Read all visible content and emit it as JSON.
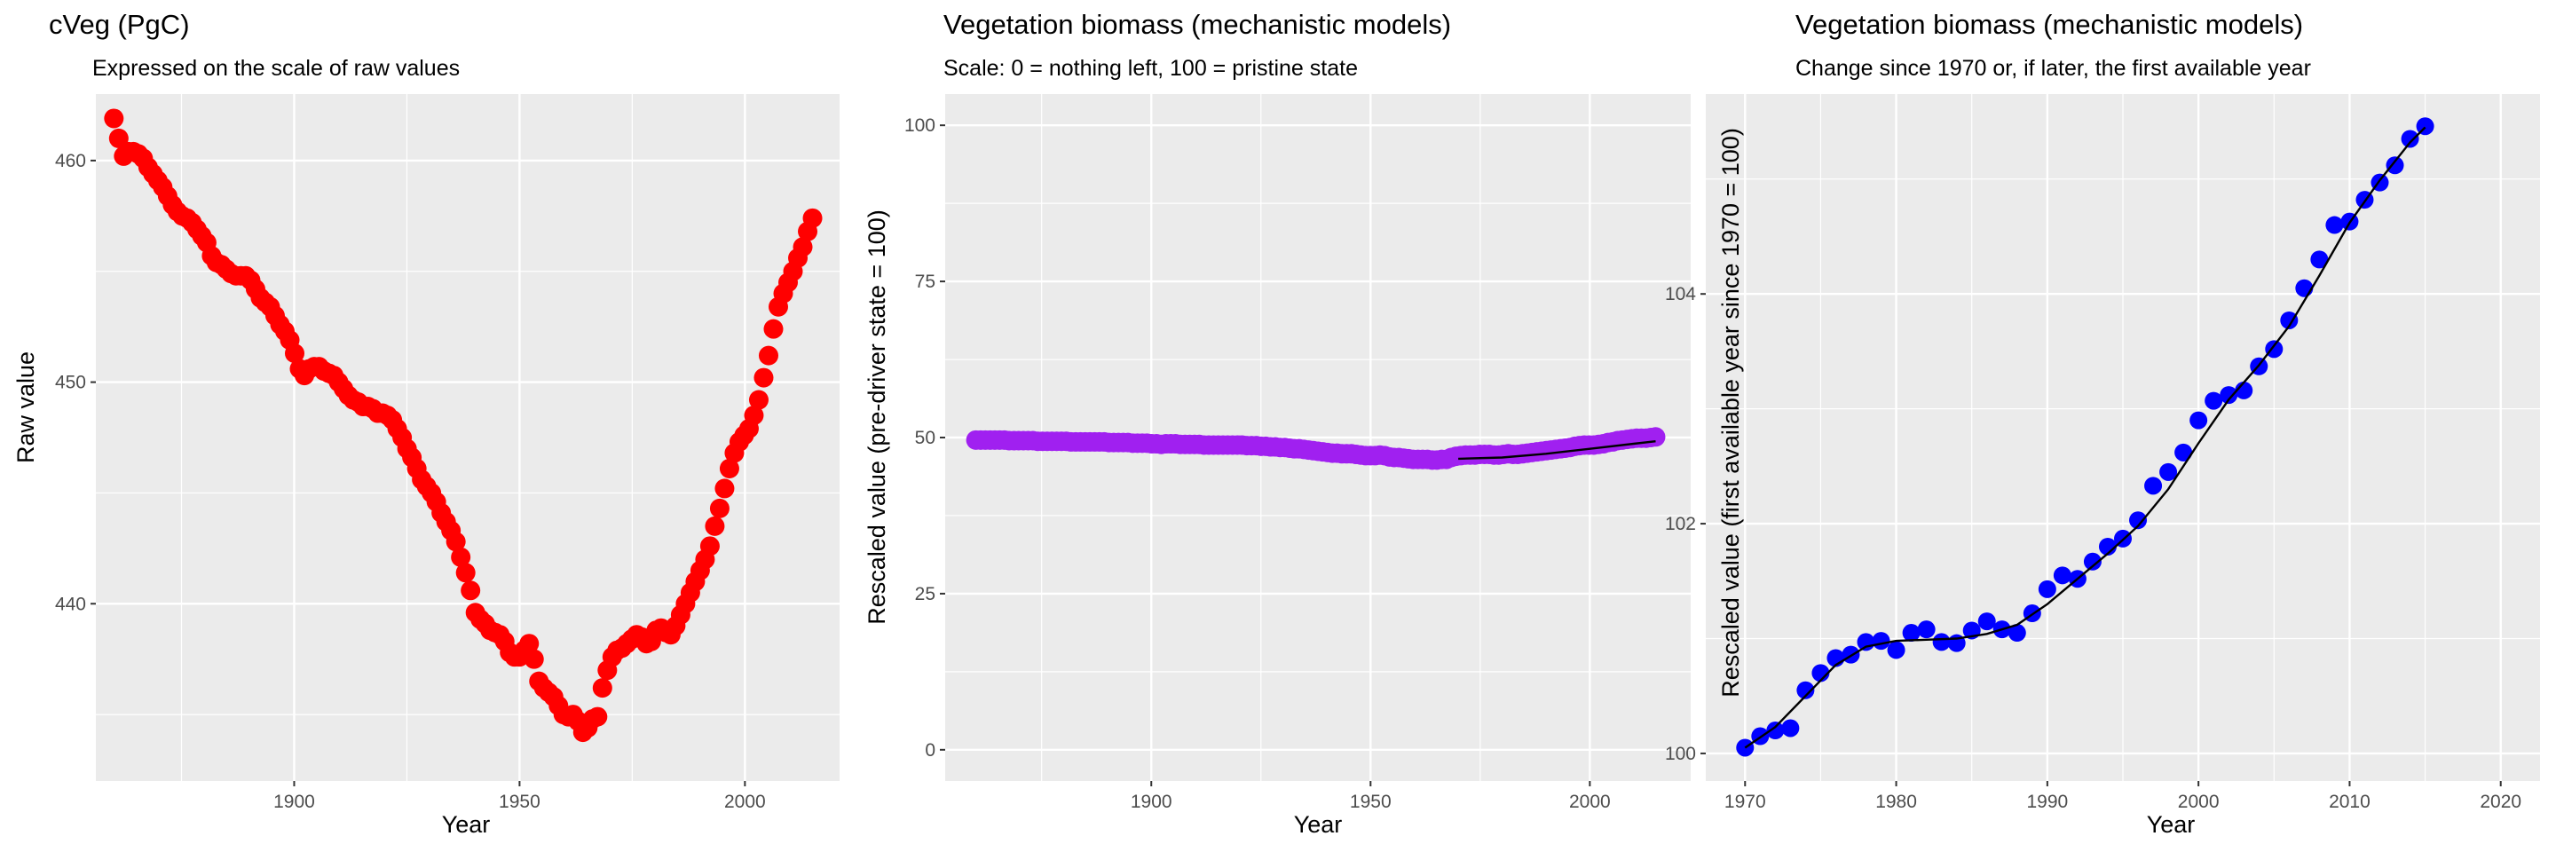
{
  "chart_data": [
    {
      "type": "scatter",
      "title": "cVeg (PgC)",
      "subtitle": "Expressed on the scale of raw values",
      "xlabel": "Year",
      "ylabel": "Raw value",
      "xlim": [
        1856,
        2021
      ],
      "ylim": [
        432,
        463
      ],
      "x_ticks": [
        1900,
        1950,
        2000
      ],
      "y_ticks": [
        440,
        450,
        460
      ],
      "grid": true,
      "point_color": "#ff0000",
      "x_range": [
        1860,
        2015
      ],
      "values": [
        461.9,
        461.0,
        460.2,
        460.4,
        460.4,
        460.3,
        460.1,
        459.7,
        459.4,
        459.1,
        458.8,
        458.4,
        458.0,
        457.7,
        457.5,
        457.4,
        457.2,
        456.9,
        456.6,
        456.3,
        455.7,
        455.4,
        455.3,
        455.1,
        454.9,
        454.8,
        454.8,
        454.8,
        454.6,
        454.2,
        453.8,
        453.6,
        453.4,
        453.0,
        452.6,
        452.3,
        451.9,
        451.3,
        450.6,
        450.3,
        450.6,
        450.7,
        450.7,
        450.5,
        450.4,
        450.3,
        450.0,
        449.7,
        449.4,
        449.2,
        449.1,
        448.9,
        448.9,
        448.8,
        448.6,
        448.6,
        448.5,
        448.3,
        447.9,
        447.5,
        447.0,
        446.6,
        446.1,
        445.6,
        445.3,
        445.0,
        444.6,
        444.1,
        443.7,
        443.3,
        442.8,
        442.1,
        441.4,
        440.6,
        439.6,
        439.3,
        439.1,
        438.8,
        438.7,
        438.6,
        438.3,
        437.8,
        437.6,
        437.6,
        437.9,
        438.2,
        437.5,
        436.5,
        436.2,
        436.0,
        435.8,
        435.4,
        435.0,
        434.9,
        435.0,
        434.7,
        434.2,
        434.4,
        434.8,
        434.9,
        436.2,
        437.0,
        437.6,
        437.9,
        438.0,
        438.2,
        438.4,
        438.6,
        438.5,
        438.2,
        438.3,
        438.8,
        438.9,
        438.7,
        438.6,
        439.0,
        439.5,
        440.0,
        440.5,
        441.0,
        441.5,
        442.0,
        442.6,
        443.5,
        444.3,
        445.2,
        446.1,
        446.8,
        447.3,
        447.6,
        447.9,
        448.5,
        449.2,
        450.2,
        451.2,
        452.4,
        453.4,
        454.0,
        454.5,
        455.0,
        455.6,
        456.1,
        456.8,
        457.4
      ]
    },
    {
      "type": "scatter",
      "title": "Vegetation biomass (mechanistic models)",
      "subtitle": "Scale: 0 = nothing left, 100 = pristine state",
      "xlabel": "Year",
      "ylabel": "Rescaled value (pre-driver state = 100)",
      "xlim": [
        1853,
        2023
      ],
      "ylim": [
        -5,
        105
      ],
      "x_ticks": [
        1900,
        1950,
        2000
      ],
      "y_ticks": [
        0,
        25,
        50,
        75,
        100
      ],
      "grid": true,
      "point_color": "#a020f0",
      "x_range": [
        1860,
        2015
      ],
      "values": [
        49.6,
        49.6,
        49.6,
        49.6,
        49.6,
        49.6,
        49.6,
        49.5,
        49.5,
        49.5,
        49.5,
        49.5,
        49.5,
        49.4,
        49.4,
        49.4,
        49.4,
        49.4,
        49.4,
        49.4,
        49.3,
        49.3,
        49.3,
        49.3,
        49.3,
        49.3,
        49.3,
        49.3,
        49.2,
        49.2,
        49.2,
        49.2,
        49.2,
        49.1,
        49.1,
        49.1,
        49.1,
        49.0,
        49.0,
        48.9,
        49.0,
        49.0,
        49.0,
        48.9,
        48.9,
        48.9,
        48.9,
        48.9,
        48.8,
        48.8,
        48.8,
        48.8,
        48.8,
        48.8,
        48.8,
        48.8,
        48.8,
        48.7,
        48.7,
        48.7,
        48.6,
        48.6,
        48.5,
        48.5,
        48.4,
        48.4,
        48.3,
        48.2,
        48.2,
        48.1,
        48.0,
        47.9,
        47.8,
        47.7,
        47.6,
        47.5,
        47.5,
        47.4,
        47.4,
        47.4,
        47.3,
        47.2,
        47.1,
        47.1,
        47.1,
        47.2,
        47.1,
        46.9,
        46.8,
        46.8,
        46.7,
        46.6,
        46.5,
        46.5,
        46.5,
        46.5,
        46.4,
        46.4,
        46.5,
        46.5,
        46.8,
        47.0,
        47.1,
        47.2,
        47.2,
        47.2,
        47.3,
        47.3,
        47.3,
        47.2,
        47.2,
        47.3,
        47.4,
        47.3,
        47.3,
        47.4,
        47.5,
        47.6,
        47.7,
        47.8,
        47.9,
        48.0,
        48.1,
        48.2,
        48.3,
        48.4,
        48.6,
        48.7,
        48.8,
        48.8,
        48.8,
        48.9,
        49.0,
        49.2,
        49.3,
        49.5,
        49.6,
        49.7,
        49.8,
        49.9,
        49.9,
        49.9,
        50.0,
        50.1
      ],
      "line": {
        "color": "#000000",
        "x": [
          1970,
          1980,
          1990,
          2000,
          2010,
          2015
        ],
        "y": [
          46.6,
          46.8,
          47.4,
          48.2,
          49.0,
          49.4
        ]
      }
    },
    {
      "type": "scatter",
      "title": "Vegetation biomass (mechanistic models)",
      "subtitle": "Change since 1970 or, if later, the first available year",
      "xlabel": "Year",
      "ylabel": "Rescaled value (first available year since 1970 = 100)",
      "xlim": [
        1967.4,
        2022.6
      ],
      "ylim": [
        99.76,
        105.74
      ],
      "x_ticks": [
        1970,
        1980,
        1990,
        2000,
        2010,
        2020
      ],
      "y_ticks": [
        100,
        102,
        104
      ],
      "grid": true,
      "point_color": "#0000ff",
      "x_range": [
        1970,
        2015
      ],
      "values": [
        100.05,
        100.15,
        100.2,
        100.22,
        100.55,
        100.7,
        100.83,
        100.86,
        100.97,
        100.98,
        100.9,
        101.05,
        101.08,
        100.97,
        100.96,
        101.07,
        101.15,
        101.08,
        101.05,
        101.22,
        101.43,
        101.55,
        101.52,
        101.67,
        101.8,
        101.87,
        102.03,
        102.33,
        102.45,
        102.62,
        102.9,
        103.07,
        103.12,
        103.16,
        103.37,
        103.52,
        103.77,
        104.05,
        104.3,
        104.6,
        104.63,
        104.82,
        104.97,
        105.12,
        105.35,
        105.46
      ],
      "line": {
        "color": "#000000",
        "x": [
          1970,
          1972,
          1974,
          1976,
          1978,
          1980,
          1982,
          1984,
          1986,
          1988,
          1990,
          1992,
          1994,
          1996,
          1998,
          2000,
          2002,
          2004,
          2006,
          2008,
          2010,
          2012,
          2014,
          2015
        ],
        "y": [
          100.05,
          100.23,
          100.5,
          100.77,
          100.93,
          100.98,
          100.99,
          101.0,
          101.04,
          101.12,
          101.3,
          101.52,
          101.74,
          101.98,
          102.3,
          102.7,
          103.08,
          103.38,
          103.72,
          104.16,
          104.62,
          104.99,
          105.32,
          105.45
        ]
      }
    }
  ]
}
